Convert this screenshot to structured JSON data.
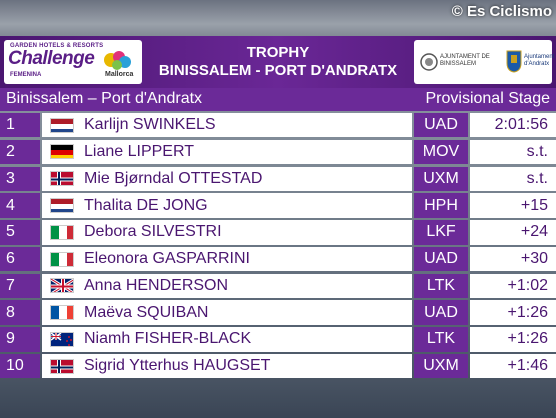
{
  "credit": "© Es Ciclismo",
  "logo": {
    "top_text": "GARDEN HOTELS & RESORTS",
    "main_text": "Challenge",
    "sub_text": "FEMENINA",
    "mallorca_text": "Mallorca"
  },
  "header": {
    "title_line1": "TROPHY",
    "title_line2": "BINISSALEM - PORT D'ANDRATX"
  },
  "sponsors": {
    "left_text": "AJUNTAMENT DE BINISSALEM",
    "right_text": "Ajuntament d'Andratx"
  },
  "subheader": {
    "stage_name": "Binissalem – Port d'Andratx",
    "stage_type": "Provisional Stage"
  },
  "colors": {
    "purple_dark": "#4a1670",
    "purple": "#6b2a98",
    "white": "#ffffff"
  },
  "results": [
    {
      "pos": "1",
      "flag": "NL",
      "name": "Karlijn SWINKELS",
      "team": "UAD",
      "gap": "2:01:56"
    },
    {
      "pos": "2",
      "flag": "DE",
      "name": "Liane LIPPERT",
      "team": "MOV",
      "gap": "s.t."
    },
    {
      "pos": "3",
      "flag": "NO",
      "name": "Mie Bjørndal OTTESTAD",
      "team": "UXM",
      "gap": "s.t."
    },
    {
      "pos": "4",
      "flag": "NL",
      "name": "Thalita DE JONG",
      "team": "HPH",
      "gap": "+15"
    },
    {
      "pos": "5",
      "flag": "IT",
      "name": "Debora SILVESTRI",
      "team": "LKF",
      "gap": "+24"
    },
    {
      "pos": "6",
      "flag": "IT",
      "name": "Eleonora GASPARRINI",
      "team": "UAD",
      "gap": "+30"
    },
    {
      "pos": "7",
      "flag": "GB",
      "name": "Anna HENDERSON",
      "team": "LTK",
      "gap": "+1:02"
    },
    {
      "pos": "8",
      "flag": "FR",
      "name": "Maëva SQUIBAN",
      "team": "UAD",
      "gap": "+1:26"
    },
    {
      "pos": "9",
      "flag": "NZ",
      "name": "Niamh FISHER-BLACK",
      "team": "LTK",
      "gap": "+1:26"
    },
    {
      "pos": "10",
      "flag": "NO",
      "name": "Sigrid Ytterhus HAUGSET",
      "team": "UXM",
      "gap": "+1:46"
    }
  ]
}
